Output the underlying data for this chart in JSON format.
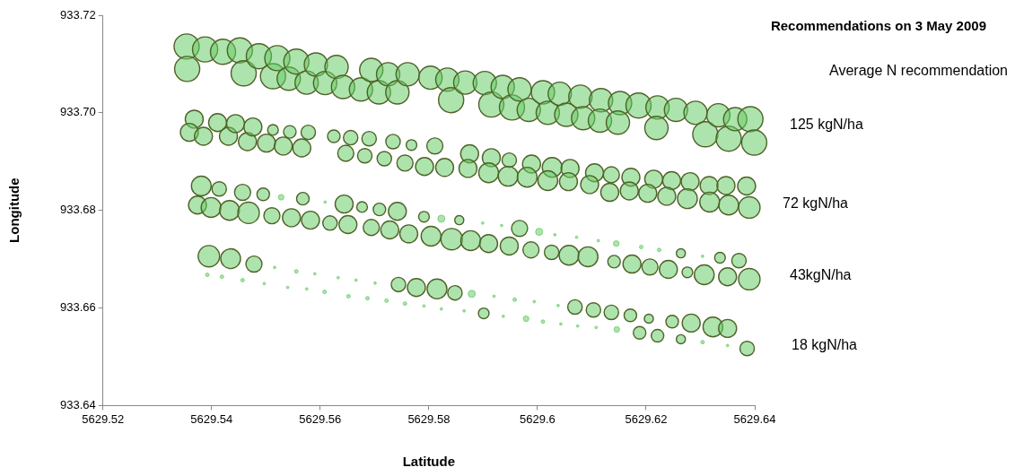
{
  "chart_data": {
    "type": "bubble",
    "title": "Recommendations on 3 May 2009",
    "xlabel": "Latitude",
    "ylabel": "Longitude",
    "annotations": [
      "Average N recommendation",
      "125 kgN/ha",
      "72 kgN/ha",
      "43kgN/ha",
      "18 kgN/ha"
    ],
    "xlim": [
      5629.52,
      5629.64
    ],
    "xticks": [
      5629.52,
      5629.54,
      5629.56,
      5629.58,
      5629.6,
      5629.62,
      5629.64
    ],
    "ylim": [
      933.64,
      933.72
    ],
    "yticks": [
      933.64,
      933.66,
      933.68,
      {
        "value": 933.7,
        "label": "933.70"
      },
      933.72
    ],
    "grid": false,
    "legend": false,
    "series": [
      {
        "color": "#66cc66",
        "x": [
          5629.5354,
          5629.5355,
          5629.5388,
          5629.5421,
          5629.5452,
          5629.5459,
          5629.5487,
          5629.5513,
          5629.5521,
          5629.5542,
          5629.5556,
          5629.5575,
          5629.5592,
          5629.5609,
          5629.563,
          5629.5642,
          5629.5675,
          5629.5694,
          5629.5708,
          5629.5725,
          5629.5742,
          5629.5761,
          5629.5803,
          5629.5834,
          5629.5841,
          5629.5867,
          5629.5903,
          5629.5915,
          5629.5936,
          5629.5953,
          5629.5967,
          5629.5984,
          5629.601,
          5629.6019,
          5629.6041,
          5629.6053,
          5629.6079,
          5629.6084,
          5629.6117,
          5629.6115,
          5629.6152,
          5629.6148,
          5629.6186,
          5629.6221,
          5629.6219,
          5629.6255,
          5629.6291,
          5629.6309,
          5629.6333,
          5629.6352,
          5629.6364,
          5629.6392,
          5629.6399
        ],
        "values": [
          933.7136,
          933.709,
          933.713,
          933.7125,
          933.7128,
          933.7081,
          933.7116,
          933.7075,
          933.7112,
          933.707,
          933.7105,
          933.7062,
          933.7099,
          933.7061,
          933.7094,
          933.7053,
          933.7048,
          933.7088,
          933.7042,
          933.7079,
          933.7042,
          933.7079,
          933.7072,
          933.7068,
          933.7026,
          933.7062,
          933.7061,
          933.7017,
          933.7053,
          933.7011,
          933.7048,
          933.7006,
          933.7042,
          933.7,
          933.7039,
          933.6996,
          933.7033,
          933.6989,
          933.7026,
          933.6984,
          933.702,
          933.698,
          933.7015,
          933.7011,
          933.6969,
          933.7006,
          933.7,
          933.6956,
          933.6995,
          933.6947,
          933.6987,
          933.6987,
          933.6939
        ],
        "sizes": [
          1,
          1,
          1,
          1,
          1,
          1,
          1,
          1,
          1,
          0.86,
          1,
          0.86,
          0.86,
          0.86,
          0.86,
          0.86,
          0.86,
          0.86,
          0.86,
          0.86,
          0.86,
          0.86,
          0.86,
          0.86,
          1,
          0.86,
          0.86,
          1,
          0.86,
          1,
          0.86,
          0.86,
          0.86,
          0.86,
          0.86,
          0.86,
          0.86,
          0.86,
          0.86,
          0.86,
          0.86,
          0.86,
          1,
          0.86,
          0.86,
          0.86,
          0.86,
          1,
          0.86,
          1,
          0.86,
          1,
          1
        ]
      },
      {
        "color": "#66cc66",
        "x": [
          5629.5368,
          5629.5359,
          5629.5385,
          5629.5411,
          5629.5431,
          5629.5444,
          5629.5466,
          5629.5476,
          5629.5513,
          5629.5501,
          5629.5544,
          5629.5532,
          5629.5578,
          5629.5566,
          5629.5625,
          5629.5656,
          5629.569,
          5629.5734,
          5629.5768,
          5629.5811,
          5629.5647,
          5629.5682,
          5629.5718,
          5629.5756,
          5629.5792,
          5629.5829,
          5629.5875,
          5629.5872,
          5629.5915,
          5629.591,
          5629.5948,
          5629.5946,
          5629.5989,
          5629.5981,
          5629.6027,
          5629.6019,
          5629.606,
          5629.6057,
          5629.6105,
          5629.6096,
          5629.6136,
          5629.6172,
          5629.6214,
          5629.6247,
          5629.6281,
          5629.6316,
          5629.6347,
          5629.6385,
          5629.6133,
          5629.6169,
          5629.6203,
          5629.6238,
          5629.6276,
          5629.6317,
          5629.6352,
          5629.639
        ],
        "values": [
          933.6987,
          933.696,
          933.6952,
          933.698,
          933.6952,
          933.6978,
          933.6941,
          933.6971,
          933.6965,
          933.6938,
          933.6961,
          933.6932,
          933.696,
          933.6928,
          933.6952,
          933.6949,
          933.6947,
          933.6941,
          933.6934,
          933.6932,
          933.6917,
          933.6912,
          933.6906,
          933.6897,
          933.689,
          933.6888,
          933.6916,
          933.6886,
          933.6908,
          933.6877,
          933.6903,
          933.687,
          933.6895,
          933.6868,
          933.6888,
          933.6861,
          933.6886,
          933.6859,
          933.6877,
          933.6853,
          933.6873,
          933.6868,
          933.6864,
          933.6861,
          933.6859,
          933.6851,
          933.6851,
          933.685,
          933.6837,
          933.684,
          933.6835,
          933.6829,
          933.6824,
          933.6817,
          933.6811,
          933.6806
        ],
        "sizes": [
          0.51,
          0.51,
          0.51,
          0.51,
          0.51,
          0.51,
          0.51,
          0.51,
          0.18,
          0.51,
          0.25,
          0.51,
          0.33,
          0.51,
          0.25,
          0.33,
          0.33,
          0.33,
          0.18,
          0.41,
          0.41,
          0.33,
          0.33,
          0.41,
          0.51,
          0.51,
          0.51,
          0.51,
          0.51,
          0.62,
          0.33,
          0.62,
          0.51,
          0.62,
          0.62,
          0.62,
          0.51,
          0.51,
          0.51,
          0.51,
          0.41,
          0.51,
          0.51,
          0.51,
          0.51,
          0.51,
          0.51,
          0.51,
          0.51,
          0.51,
          0.51,
          0.51,
          0.62,
          0.62,
          0.62,
          0.73
        ]
      },
      {
        "color": "#66cc66",
        "x": [
          5629.5381,
          5629.5414,
          5629.5457,
          5629.5495,
          5629.5528,
          5629.5568,
          5629.5609,
          5629.5644,
          5629.5677,
          5629.5709,
          5629.5742,
          5629.5791,
          5629.5823,
          5629.5856,
          5629.5899,
          5629.5934,
          5629.5967,
          5629.6003,
          5629.6032,
          5629.6072,
          5629.6112,
          5629.6145,
          5629.6191,
          5629.6224,
          5629.6264,
          5629.6304,
          5629.6336,
          5629.6371
        ],
        "values": [
          933.685,
          933.6844,
          933.6837,
          933.6833,
          933.6827,
          933.6824,
          933.6817,
          933.6813,
          933.6807,
          933.6802,
          933.6798,
          933.6787,
          933.6783,
          933.678,
          933.6774,
          933.6769,
          933.6763,
          933.6756,
          933.675,
          933.6745,
          933.6738,
          933.6732,
          933.6725,
          933.6719,
          933.6712,
          933.6706,
          933.6703,
          933.6697
        ],
        "sizes": [
          0.62,
          0.33,
          0.41,
          0.25,
          0.05,
          0.25,
          0.01,
          0.51,
          0.18,
          0.25,
          0.51,
          0.18,
          0.08,
          0.13,
          0.01,
          0.01,
          0.41,
          0.08,
          0.01,
          0.01,
          0.01,
          0.05,
          0.02,
          0.02,
          0.13,
          0.01,
          0.18,
          0.33
        ]
      },
      {
        "color": "#66cc66",
        "x": [
          5629.5374,
          5629.5399,
          5629.5433,
          5629.5468,
          5629.5511,
          5629.5547,
          5629.5582,
          5629.5618,
          5629.5651,
          5629.5694,
          5629.5728,
          5629.5763,
          5629.5804,
          5629.5842,
          5629.5877,
          5629.591,
          5629.5948,
          5629.5988,
          5629.6026,
          5629.6058,
          5629.6093,
          5629.6141,
          5629.6174,
          5629.6207,
          5629.6241,
          5629.6276,
          5629.6307,
          5629.635,
          5629.639
        ],
        "values": [
          933.6811,
          933.6806,
          933.68,
          933.6795,
          933.6789,
          933.6785,
          933.678,
          933.6774,
          933.6771,
          933.6765,
          933.676,
          933.6752,
          933.6747,
          933.6741,
          933.6738,
          933.6732,
          933.6727,
          933.6719,
          933.6714,
          933.6708,
          933.6705,
          933.6695,
          933.669,
          933.6684,
          933.6679,
          933.6673,
          933.6668,
          933.6664,
          933.6659
        ],
        "sizes": [
          0.51,
          0.62,
          0.62,
          0.73,
          0.41,
          0.51,
          0.51,
          0.33,
          0.51,
          0.41,
          0.51,
          0.51,
          0.62,
          0.73,
          0.62,
          0.51,
          0.51,
          0.41,
          0.33,
          0.62,
          0.62,
          0.25,
          0.51,
          0.41,
          0.51,
          0.18,
          0.62,
          0.51,
          0.73
        ]
      },
      {
        "color": "#66cc66",
        "x": [
          5629.5395,
          5629.5435,
          5629.5478,
          5629.5516,
          5629.5556,
          5629.559,
          5629.5633,
          5629.5666,
          5629.5701,
          5629.5744,
          5629.5777,
          5629.5815,
          5629.5848,
          5629.5879,
          5629.592,
          5629.5958,
          5629.5994,
          5629.6038,
          5629.6069,
          5629.6103,
          5629.6136,
          5629.6171,
          5629.6205,
          5629.6248,
          5629.6283,
          5629.6323,
          5629.635
        ],
        "values": [
          933.6706,
          933.6701,
          933.669,
          933.6683,
          933.6675,
          933.667,
          933.6662,
          933.6657,
          933.6651,
          933.6648,
          933.6642,
          933.6639,
          933.6631,
          933.6629,
          933.6624,
          933.6617,
          933.6613,
          933.6605,
          933.6602,
          933.6596,
          933.6591,
          933.6585,
          933.6578,
          933.6572,
          933.6569,
          933.6561,
          933.6558
        ],
        "sizes": [
          0.73,
          0.62,
          0.41,
          0.01,
          0.02,
          0.01,
          0.01,
          0.01,
          0.01,
          0.33,
          0.51,
          0.62,
          0.33,
          0.08,
          0.01,
          0.02,
          0.01,
          0.01,
          0.33,
          0.33,
          0.33,
          0.25,
          0.13,
          0.25,
          0.51,
          0.62,
          0.51
        ]
      },
      {
        "color": "#66cc66",
        "x": [
          5629.5392,
          5629.5419,
          5629.5457,
          5629.5497,
          5629.554,
          5629.5575,
          5629.5608,
          5629.5652,
          5629.5687,
          5629.5722,
          5629.5756,
          5629.5791,
          5629.5823,
          5629.5865,
          5629.5901,
          5629.5937,
          5629.5979,
          5629.601,
          5629.6043,
          5629.6074,
          5629.6108,
          5629.6146,
          5629.6188,
          5629.6221,
          5629.6264,
          5629.6304,
          5629.635,
          5629.6386
        ],
        "values": [
          933.6668,
          933.6664,
          933.6657,
          933.665,
          933.6642,
          933.6639,
          933.6633,
          933.6624,
          933.662,
          933.6615,
          933.6609,
          933.6604,
          933.6598,
          933.6594,
          933.6589,
          933.6583,
          933.6578,
          933.6572,
          933.6567,
          933.6563,
          933.656,
          933.6556,
          933.6549,
          933.6543,
          933.6536,
          933.653,
          933.6523,
          933.6517
        ],
        "sizes": [
          0.02,
          0.02,
          0.02,
          0.01,
          0.01,
          0.01,
          0.02,
          0.02,
          0.02,
          0.02,
          0.02,
          0.01,
          0.01,
          0.01,
          0.18,
          0.01,
          0.05,
          0.02,
          0.01,
          0.01,
          0.01,
          0.05,
          0.25,
          0.25,
          0.13,
          0.02,
          0.01,
          0.33
        ]
      }
    ]
  }
}
